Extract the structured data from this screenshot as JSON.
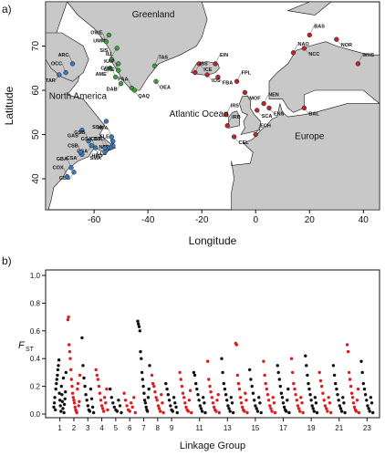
{
  "chart_data": [
    {
      "type": "map",
      "panel_label": "a)",
      "xlabel": "Longitude",
      "ylabel": "Latitude",
      "xlim": [
        -78,
        46
      ],
      "ylim": [
        33,
        80
      ],
      "xticks": [
        -60,
        -40,
        -20,
        0,
        20,
        40
      ],
      "yticks": [
        40,
        50,
        60,
        70
      ],
      "region_labels": [
        "Greenland",
        "North America",
        "Atlantic Ocean",
        "Europe"
      ],
      "colors": {
        "land": "#c8c8c8",
        "ocean": "#ffffff",
        "north_american_sites": "#3a7dc8",
        "greenland_sites": "#3aa83a",
        "european_sites": "#c8252d"
      },
      "sites": [
        {
          "code": "UMM",
          "lon": -54.5,
          "lat": 72.5,
          "group": "greenland_sites"
        },
        {
          "code": "OWE",
          "lon": -55.5,
          "lat": 71.0,
          "group": "greenland_sites"
        },
        {
          "code": "ILL",
          "lon": -51.5,
          "lat": 69.5,
          "group": "greenland_sites"
        },
        {
          "code": "SIS",
          "lon": -53.5,
          "lat": 67.0,
          "group": "greenland_sites"
        },
        {
          "code": "GRE",
          "lon": -51.0,
          "lat": 66.0,
          "group": "greenland_sites"
        },
        {
          "code": "KAP",
          "lon": -51.0,
          "lat": 64.5,
          "group": "greenland_sites"
        },
        {
          "code": "AME",
          "lon": -54.0,
          "lat": 65.0,
          "group": "greenland_sites"
        },
        {
          "code": "COR",
          "lon": -52.0,
          "lat": 63.0,
          "group": "greenland_sites"
        },
        {
          "code": "DAB",
          "lon": -50.0,
          "lat": 61.5,
          "group": "greenland_sites"
        },
        {
          "code": "PAA",
          "lon": -46.0,
          "lat": 60.5,
          "group": "greenland_sites"
        },
        {
          "code": "QAQ",
          "lon": -45.0,
          "lat": 60.0,
          "group": "greenland_sites"
        },
        {
          "code": "TAS",
          "lon": -37.5,
          "lat": 65.5,
          "group": "greenland_sites"
        },
        {
          "code": "OEA",
          "lon": -37.0,
          "lat": 62.0,
          "group": "greenland_sites"
        },
        {
          "code": "ARC",
          "lon": -68.0,
          "lat": 66.0,
          "group": "north_american_sites"
        },
        {
          "code": "TAR",
          "lon": -73.0,
          "lat": 63.5,
          "group": "north_american_sites"
        },
        {
          "code": "OCC",
          "lon": -70.5,
          "lat": 64.0,
          "group": "north_american_sites"
        },
        {
          "code": "GAS",
          "lon": -64.5,
          "lat": 51.0,
          "group": "north_american_sites"
        },
        {
          "code": "GSB",
          "lon": -62.0,
          "lat": 48.5,
          "group": "north_american_sites"
        },
        {
          "code": "GSA",
          "lon": -61.0,
          "lat": 47.5,
          "group": "north_american_sites"
        },
        {
          "code": "CSB",
          "lon": -64.5,
          "lat": 45.5,
          "group": "north_american_sites"
        },
        {
          "code": "CSA",
          "lon": -65.0,
          "lat": 46.0,
          "group": "north_american_sites"
        },
        {
          "code": "GSA",
          "lon": -59.5,
          "lat": 47.0,
          "group": "north_american_sites"
        },
        {
          "code": "SSA",
          "lon": -55.5,
          "lat": 53.0,
          "group": "north_american_sites"
        },
        {
          "code": "NFA",
          "lon": -53.5,
          "lat": 49.5,
          "group": "north_american_sites"
        },
        {
          "code": "NFB",
          "lon": -53.0,
          "lat": 48.5,
          "group": "north_american_sites"
        },
        {
          "code": "FLE",
          "lon": -53.0,
          "lat": 47.5,
          "group": "north_american_sites"
        },
        {
          "code": "LLC",
          "lon": -54.0,
          "lat": 47.0,
          "group": "north_american_sites"
        },
        {
          "code": "BSL",
          "lon": -55.0,
          "lat": 47.0,
          "group": "north_american_sites"
        },
        {
          "code": "HRD",
          "lon": -55.5,
          "lat": 46.5,
          "group": "north_american_sites"
        },
        {
          "code": "CGT",
          "lon": -56.0,
          "lat": 47.0,
          "group": "north_american_sites"
        },
        {
          "code": "SMA",
          "lon": -56.0,
          "lat": 46.0,
          "group": "north_american_sites"
        },
        {
          "code": "GBA",
          "lon": -68.5,
          "lat": 42.5,
          "group": "north_american_sites"
        },
        {
          "code": "GBB",
          "lon": -67.5,
          "lat": 41.5,
          "group": "north_american_sites"
        },
        {
          "code": "COX",
          "lon": -70.0,
          "lat": 40.5,
          "group": "north_american_sites"
        },
        {
          "code": "ICE",
          "lon": -21.0,
          "lat": 66.0,
          "group": "european_sites"
        },
        {
          "code": "EIN",
          "lon": -15.0,
          "lat": 66.0,
          "group": "european_sites"
        },
        {
          "code": "FBA",
          "lon": -14.0,
          "lat": 63.0,
          "group": "european_sites"
        },
        {
          "code": "ISS",
          "lon": -22.5,
          "lat": 64.0,
          "group": "european_sites"
        },
        {
          "code": "IOS",
          "lon": -18.0,
          "lat": 63.5,
          "group": "european_sites"
        },
        {
          "code": "FPL",
          "lon": -7.0,
          "lat": 62.0,
          "group": "european_sites"
        },
        {
          "code": "MOF",
          "lon": -4.0,
          "lat": 59.5,
          "group": "european_sites"
        },
        {
          "code": "NEN",
          "lon": 3.0,
          "lat": 57.0,
          "group": "european_sites"
        },
        {
          "code": "ENS",
          "lon": 5.0,
          "lat": 56.0,
          "group": "european_sites"
        },
        {
          "code": "NAO",
          "lon": 14.0,
          "lat": 68.5,
          "group": "european_sites"
        },
        {
          "code": "NCC",
          "lon": 18.0,
          "lat": 69.5,
          "group": "european_sites"
        },
        {
          "code": "BAS",
          "lon": 20.0,
          "lat": 72.5,
          "group": "european_sites"
        },
        {
          "code": "NOR",
          "lon": 30.0,
          "lat": 71.5,
          "group": "european_sites"
        },
        {
          "code": "WHS",
          "lon": 38.0,
          "lat": 66.0,
          "group": "european_sites"
        },
        {
          "code": "BAL",
          "lon": 18.0,
          "lat": 56.0,
          "group": "european_sites"
        },
        {
          "code": "IRS",
          "lon": -11.0,
          "lat": 54.5,
          "group": "european_sites"
        },
        {
          "code": "SCA",
          "lon": 0.5,
          "lat": 55.5,
          "group": "european_sites"
        },
        {
          "code": "IRB",
          "lon": -10.5,
          "lat": 52.0,
          "group": "european_sites"
        },
        {
          "code": "CEL",
          "lon": -8.0,
          "lat": 49.5,
          "group": "european_sites"
        },
        {
          "code": "ECH",
          "lon": 0.0,
          "lat": 50.0,
          "group": "european_sites"
        }
      ],
      "label_text": {
        "UMM": "UMM",
        "OWE": "OWE",
        "ILL": "ILL",
        "SIS": "SIS",
        "GRE": "GRE",
        "KAP": "KAP",
        "AME": "AME",
        "COR": "COR",
        "DAB": "DAB",
        "PAA": "PAA",
        "QAQ": "QAQ",
        "TAS": "TAS",
        "OEA": "OEA",
        "ARC": "ARC",
        "TAR": "TAR",
        "OCC": "OCC",
        "GAS": "GAS",
        "GSB": "GSB",
        "GSA": "GSA",
        "CSB": "CSB",
        "CSA": "CSA",
        "SSA": "SSA",
        "NFA": "NFA",
        "NFB": "NFB",
        "FLE": "FLE",
        "LLC": "LLC",
        "BSL": "BSL",
        "HRD": "HRD",
        "CGT": "CGT",
        "SMA": "SMA",
        "GBA": "GBA",
        "GBB": "GBB",
        "COX": "COX",
        "ICE": "ICE",
        "EIN": "EIN",
        "FBA": "FBA",
        "ISS": "ISS",
        "IOS": "IOS",
        "FPL": "FPL",
        "MOF": "MOF",
        "NEN": "NEN",
        "ENS": "ENS",
        "NAO": "NAO",
        "NCC": "NCC",
        "BAS": "BAS",
        "NOR": "NOR",
        "WHS": "WHS",
        "BAL": "BAL",
        "IRS": "IRS",
        "SCA": "SCA",
        "IRB": "IRB",
        "CEL": "CEL",
        "ECH": "ECH"
      }
    },
    {
      "type": "scatter",
      "panel_label": "b)",
      "xlabel": "Linkage Group",
      "ylabel": "F",
      "ylabel_subscript": "ST",
      "ylim": [
        0,
        1.0
      ],
      "yticks": [
        "0.0",
        "0.2",
        "0.4",
        "0.6",
        "0.8",
        "1.0"
      ],
      "xticks": [
        "1",
        "2",
        "3",
        "4",
        "5",
        "6",
        "7",
        "8",
        "9",
        "11",
        "13",
        "15",
        "17",
        "19",
        "21",
        "23"
      ],
      "xtick_groups": [
        1,
        2,
        3,
        4,
        5,
        6,
        7,
        8,
        9,
        11,
        13,
        15,
        17,
        19,
        21,
        23
      ],
      "linkage_groups": 23,
      "alternating_colors": [
        "#111111",
        "#e31a1c"
      ],
      "grid": false,
      "series": [
        {
          "group": 1,
          "values": [
            0.05,
            0.08,
            0.12,
            0.03,
            0.18,
            0.22,
            0.25,
            0.28,
            0.32,
            0.35,
            0.39,
            0.15,
            0.1,
            0.06,
            0.02,
            0.2,
            0.14,
            0.09,
            0.04,
            0.26,
            0.01,
            0.07,
            0.11,
            0.16,
            0.3
          ]
        },
        {
          "group": 2,
          "values": [
            0.68,
            0.7,
            0.5,
            0.45,
            0.4,
            0.32,
            0.25,
            0.2,
            0.15,
            0.12,
            0.1,
            0.08,
            0.05,
            0.03,
            0.02,
            0.01,
            0.18,
            0.22,
            0.06,
            0.09,
            0.28
          ]
        },
        {
          "group": 3,
          "values": [
            0.55,
            0.35,
            0.26,
            0.2,
            0.14,
            0.1,
            0.06,
            0.03,
            0.02,
            0.18,
            0.11,
            0.05,
            0.01
          ]
        },
        {
          "group": 4,
          "values": [
            0.32,
            0.28,
            0.25,
            0.2,
            0.15,
            0.1,
            0.06,
            0.04,
            0.02,
            0.12,
            0.08,
            0.18,
            0.03
          ]
        },
        {
          "group": 5,
          "values": [
            0.18,
            0.12,
            0.08,
            0.05,
            0.03,
            0.02,
            0.1,
            0.06,
            0.01
          ]
        },
        {
          "group": 6,
          "values": [
            0.15,
            0.1,
            0.06,
            0.03,
            0.02,
            0.08,
            0.05,
            0.12,
            0.01
          ]
        },
        {
          "group": 7,
          "values": [
            0.67,
            0.65,
            0.63,
            0.6,
            0.45,
            0.4,
            0.3,
            0.25,
            0.2,
            0.15,
            0.1,
            0.08,
            0.05,
            0.03,
            0.02,
            0.12,
            0.18,
            0.35
          ]
        },
        {
          "group": 8,
          "values": [
            0.28,
            0.22,
            0.2,
            0.16,
            0.12,
            0.1,
            0.06,
            0.04,
            0.02,
            0.14,
            0.08,
            0.01
          ]
        },
        {
          "group": 9,
          "values": [
            0.22,
            0.18,
            0.14,
            0.1,
            0.06,
            0.03,
            0.02,
            0.12,
            0.08,
            0.05,
            0.01
          ]
        },
        {
          "group": 10,
          "values": [
            0.3,
            0.25,
            0.2,
            0.15,
            0.12,
            0.08,
            0.05,
            0.03,
            0.02,
            0.1,
            0.17,
            0.01
          ]
        },
        {
          "group": 11,
          "values": [
            0.3,
            0.28,
            0.22,
            0.18,
            0.14,
            0.1,
            0.06,
            0.04,
            0.02,
            0.12,
            0.08,
            0.01
          ]
        },
        {
          "group": 12,
          "values": [
            0.38,
            0.25,
            0.2,
            0.16,
            0.12,
            0.08,
            0.05,
            0.03,
            0.02,
            0.1,
            0.14,
            0.01
          ]
        },
        {
          "group": 13,
          "values": [
            0.4,
            0.3,
            0.22,
            0.18,
            0.14,
            0.1,
            0.06,
            0.04,
            0.02,
            0.12,
            0.08,
            0.01
          ]
        },
        {
          "group": 14,
          "values": [
            0.51,
            0.5,
            0.28,
            0.22,
            0.18,
            0.12,
            0.08,
            0.05,
            0.03,
            0.02,
            0.15,
            0.1,
            0.01
          ]
        },
        {
          "group": 15,
          "values": [
            0.32,
            0.25,
            0.2,
            0.15,
            0.1,
            0.06,
            0.04,
            0.02,
            0.12,
            0.08,
            0.01
          ]
        },
        {
          "group": 16,
          "values": [
            0.38,
            0.28,
            0.22,
            0.18,
            0.14,
            0.1,
            0.06,
            0.04,
            0.02,
            0.12,
            0.08,
            0.01
          ]
        },
        {
          "group": 17,
          "values": [
            0.35,
            0.3,
            0.25,
            0.2,
            0.15,
            0.12,
            0.08,
            0.05,
            0.03,
            0.02,
            0.1,
            0.18,
            0.01
          ]
        },
        {
          "group": 18,
          "values": [
            0.4,
            0.3,
            0.22,
            0.18,
            0.14,
            0.1,
            0.06,
            0.04,
            0.02,
            0.12,
            0.08,
            0.01
          ]
        },
        {
          "group": 19,
          "values": [
            0.42,
            0.35,
            0.28,
            0.22,
            0.18,
            0.14,
            0.1,
            0.06,
            0.04,
            0.02,
            0.12,
            0.08,
            0.01
          ]
        },
        {
          "group": 20,
          "values": [
            0.3,
            0.24,
            0.2,
            0.15,
            0.1,
            0.06,
            0.04,
            0.02,
            0.12,
            0.08,
            0.01
          ]
        },
        {
          "group": 21,
          "values": [
            0.35,
            0.28,
            0.22,
            0.18,
            0.14,
            0.1,
            0.06,
            0.04,
            0.02,
            0.12,
            0.08,
            0.01
          ]
        },
        {
          "group": 22,
          "values": [
            0.5,
            0.45,
            0.3,
            0.25,
            0.2,
            0.15,
            0.12,
            0.08,
            0.05,
            0.03,
            0.02,
            0.1,
            0.18,
            0.01
          ]
        },
        {
          "group": 23,
          "values": [
            0.38,
            0.3,
            0.22,
            0.18,
            0.14,
            0.1,
            0.06,
            0.04,
            0.02,
            0.12,
            0.08,
            0.01
          ]
        }
      ]
    }
  ]
}
